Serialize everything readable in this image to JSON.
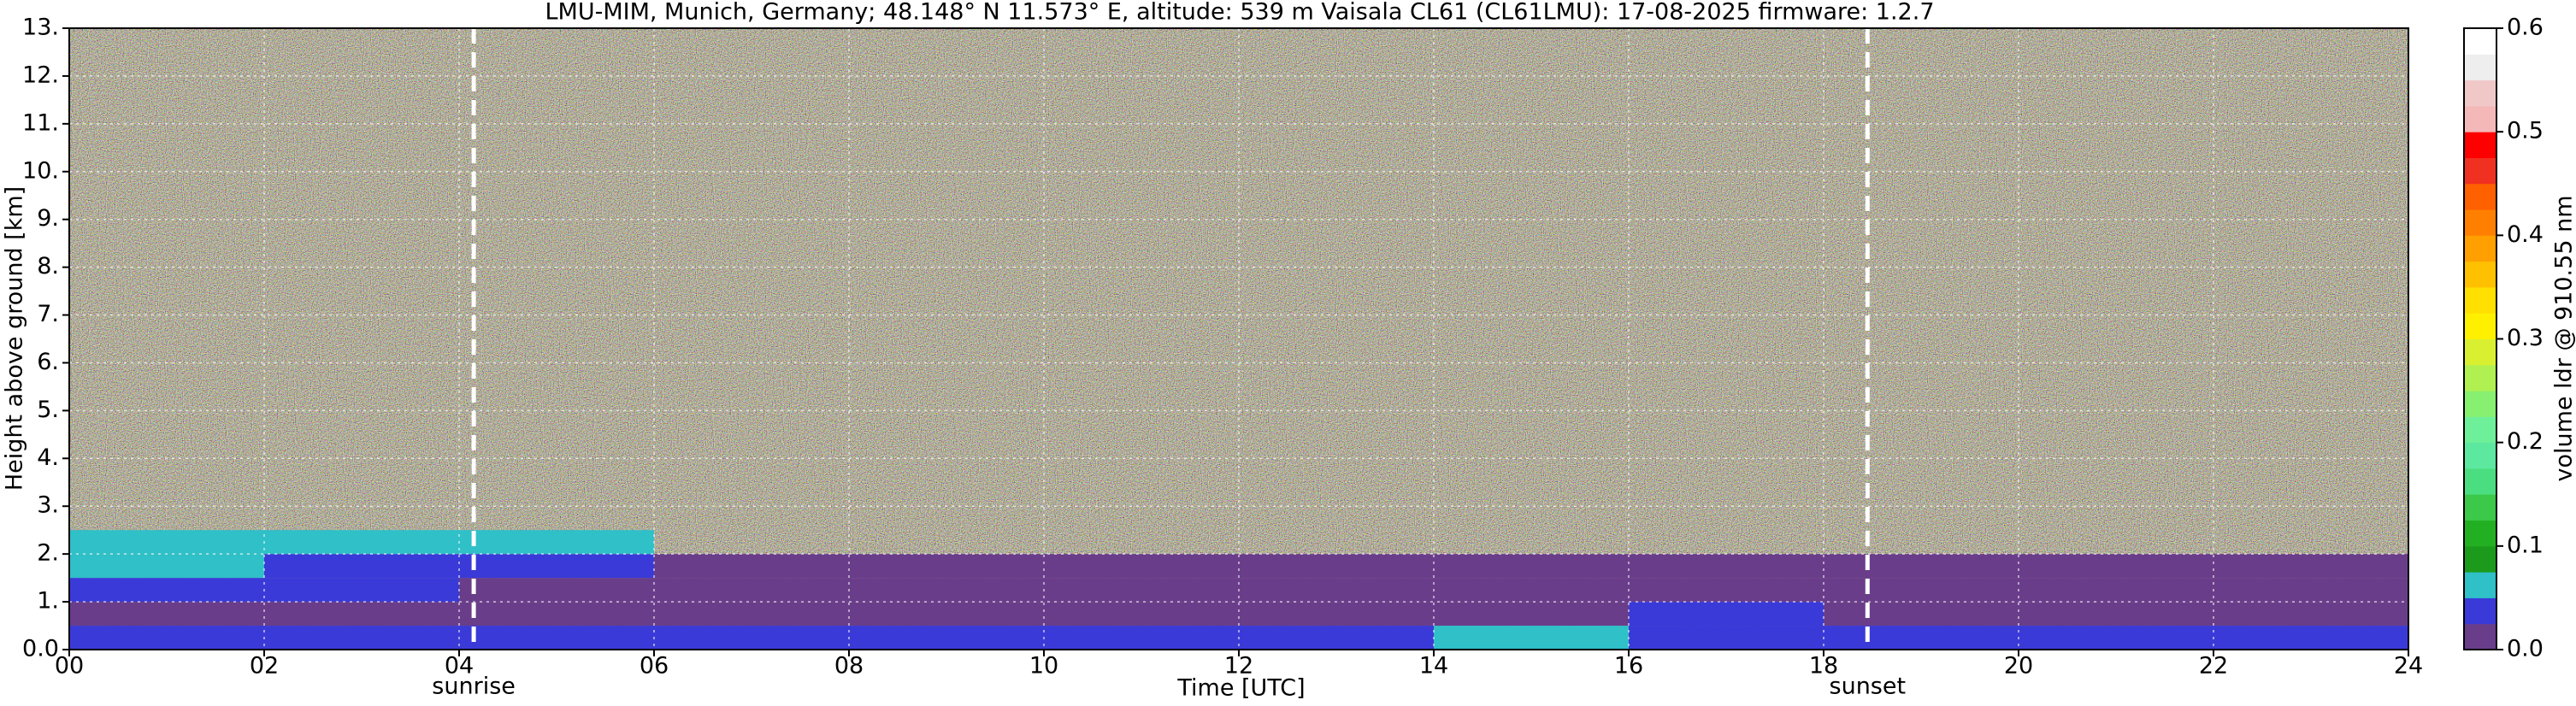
{
  "chart_data": {
    "type": "heatmap",
    "title": "LMU-MIM, Munich, Germany; 48.148° N 11.573° E, altitude: 539 m    Vaisala CL61 (CL61LMU): 17-08-2025    firmware: 1.2.7",
    "x_label": "Time [UTC]",
    "y_label": "Height above ground [km]",
    "xlim": [
      0,
      24
    ],
    "ylim": [
      0,
      13
    ],
    "xticks": [
      {
        "value": 0,
        "label": "00"
      },
      {
        "value": 2,
        "label": "02"
      },
      {
        "value": 4,
        "label": "04"
      },
      {
        "value": 6,
        "label": "06"
      },
      {
        "value": 8,
        "label": "08"
      },
      10,
      12,
      14,
      16,
      18,
      20,
      22,
      24
    ],
    "yticks": [
      {
        "value": 0,
        "label": "0.0"
      },
      {
        "value": 1,
        "label": "1."
      },
      {
        "value": 2,
        "label": "2."
      },
      {
        "value": 3,
        "label": "3."
      },
      {
        "value": 4,
        "label": "4."
      },
      {
        "value": 5,
        "label": "5."
      },
      {
        "value": 6,
        "label": "6."
      },
      {
        "value": 7,
        "label": "7."
      },
      {
        "value": 8,
        "label": "8."
      },
      {
        "value": 9,
        "label": "9."
      },
      {
        "value": 10,
        "label": "10."
      },
      {
        "value": 11,
        "label": "11."
      },
      {
        "value": 12,
        "label": "12."
      },
      {
        "value": 13,
        "label": "13."
      }
    ],
    "grid": true,
    "x_edges": [
      0,
      2,
      4,
      6,
      8,
      10,
      12,
      14,
      16,
      18,
      20,
      22,
      24
    ],
    "y_edges": [
      0,
      0.5,
      1,
      1.5,
      2,
      2.5
    ],
    "z": [
      [
        0.03,
        0.03,
        0.03,
        0.03,
        0.03,
        0.03,
        0.03,
        0.05,
        0.04,
        0.04,
        0.04,
        0.04
      ],
      [
        0.02,
        0.02,
        0.02,
        0.02,
        0.02,
        0.02,
        0.02,
        0.02,
        0.03,
        0.02,
        0.02,
        0.02
      ],
      [
        0.04,
        0.04,
        0.02,
        0.02,
        0.02,
        0.02,
        0.02,
        0.02,
        0.02,
        0.02,
        0.02,
        0.02
      ],
      [
        0.05,
        0.04,
        0.04,
        0.02,
        0.02,
        0.02,
        0.02,
        0.02,
        0.02,
        0.02,
        0.02,
        0.02
      ],
      [
        0.07,
        0.07,
        0.06,
        null,
        null,
        null,
        null,
        null,
        null,
        null,
        null,
        null
      ]
    ],
    "annotations": [
      {
        "text": "sunrise",
        "x": 4.15
      },
      {
        "text": "sunset",
        "x": 18.45
      }
    ],
    "colorbar": {
      "label": "volume ldr @ 910.55 nm",
      "lim": [
        0,
        0.6
      ],
      "ticks": [
        {
          "value": 0,
          "label": "0.0"
        },
        0.1,
        0.2,
        0.3,
        0.4,
        0.5,
        0.6
      ],
      "colors": [
        "#6a3d8a",
        "#3a3ad8",
        "#2fc0c8",
        "#1c9a1c",
        "#22b022",
        "#3cc848",
        "#4ade80",
        "#5de8a0",
        "#6ef09a",
        "#88f070",
        "#b0f050",
        "#d8f030",
        "#fff000",
        "#ffe000",
        "#ffc000",
        "#ffa000",
        "#ff8000",
        "#ff6000",
        "#f03020",
        "#ff0000",
        "#f5b8b8",
        "#f0c8c8",
        "#eeeeee",
        "#ffffff"
      ]
    }
  }
}
